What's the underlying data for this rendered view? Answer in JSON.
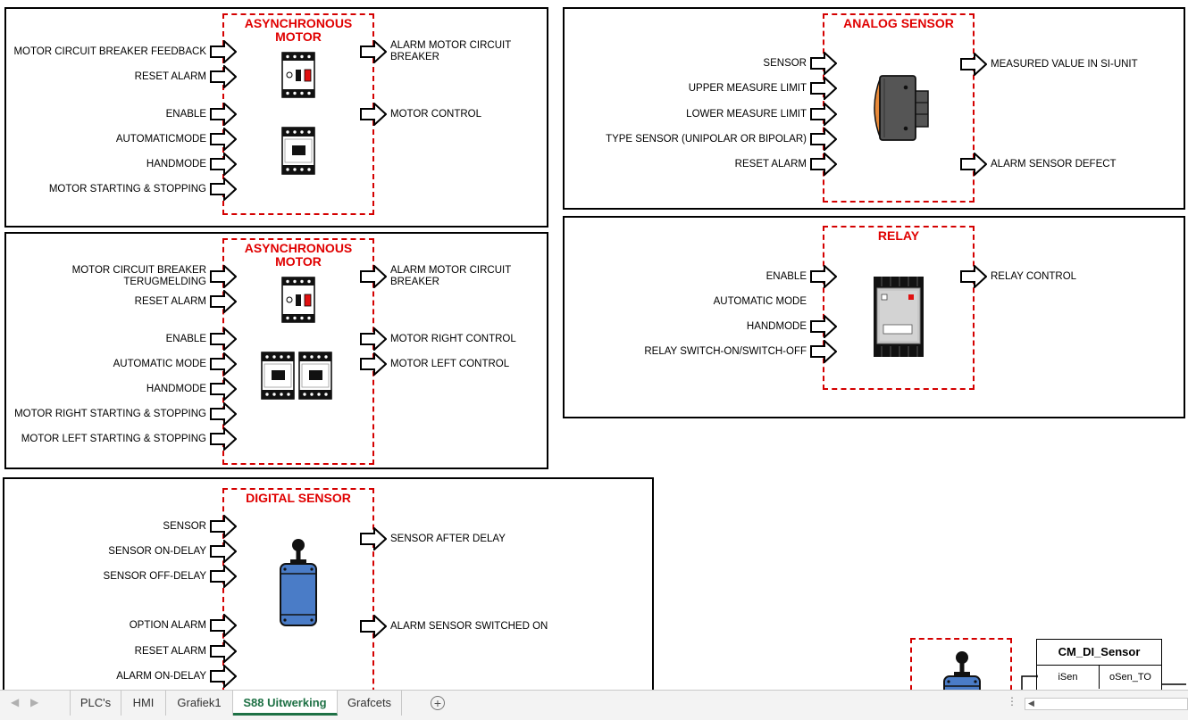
{
  "blocks": {
    "motor1": {
      "title": "ASYNCHRONOUS\nMOTOR",
      "inputs": [
        "MOTOR CIRCUIT BREAKER FEEDBACK",
        "RESET ALARM",
        "ENABLE",
        "AUTOMATICMODE",
        "HANDMODE",
        "MOTOR STARTING & STOPPING"
      ],
      "outputs": [
        "ALARM MOTOR CIRCUIT BREAKER",
        "MOTOR CONTROL"
      ]
    },
    "motor2": {
      "title": "ASYNCHRONOUS\nMOTOR",
      "inputs": [
        "MOTOR CIRCUIT BREAKER TERUGMELDING",
        "RESET ALARM",
        "ENABLE",
        "AUTOMATIC MODE",
        "HANDMODE",
        "MOTOR RIGHT STARTING & STOPPING",
        "MOTOR LEFT STARTING & STOPPING"
      ],
      "outputs": [
        "ALARM MOTOR CIRCUIT BREAKER",
        "MOTOR RIGHT CONTROL",
        "MOTOR LEFT CONTROL"
      ]
    },
    "digital": {
      "title": "DIGITAL SENSOR",
      "inputs": [
        "SENSOR",
        "SENSOR ON-DELAY",
        "SENSOR OFF-DELAY",
        "OPTION ALARM",
        "RESET ALARM",
        "ALARM ON-DELAY"
      ],
      "outputs": [
        "SENSOR AFTER DELAY",
        "ALARM SENSOR SWITCHED ON"
      ]
    },
    "analog": {
      "title": "ANALOG SENSOR",
      "inputs": [
        "SENSOR",
        "UPPER MEASURE LIMIT",
        "LOWER MEASURE LIMIT",
        "TYPE SENSOR (UNIPOLAR OR BIPOLAR)",
        "RESET ALARM"
      ],
      "outputs": [
        "MEASURED VALUE IN SI-UNIT",
        "ALARM SENSOR DEFECT"
      ]
    },
    "relay": {
      "title": "RELAY",
      "inputs": [
        "ENABLE",
        "AUTOMATIC MODE",
        "HANDMODE",
        "RELAY SWITCH-ON/SWITCH-OFF"
      ],
      "outputs": [
        "RELAY CONTROL"
      ]
    }
  },
  "cm_block": {
    "name": "CM_DI_Sensor",
    "in": "iSen",
    "out": "oSen_TO"
  },
  "tabs": [
    "PLC's",
    "HMI",
    "Grafiek1",
    "S88 Uitwerking",
    "Grafcets"
  ],
  "active_tab": "S88 Uitwerking",
  "colors": {
    "accent": "#d40000",
    "tab_active": "#1e7145",
    "sensor_blue": "#4a7cc7",
    "analog_orange": "#e88a3a"
  },
  "icons": [
    "circuit-breaker-icon",
    "contactor-icon",
    "proximity-switch-icon",
    "analog-sensor-icon",
    "relay-module-icon",
    "add-sheet-icon",
    "scroll-left-icon",
    "scroll-right-icon",
    "more-options-icon"
  ]
}
